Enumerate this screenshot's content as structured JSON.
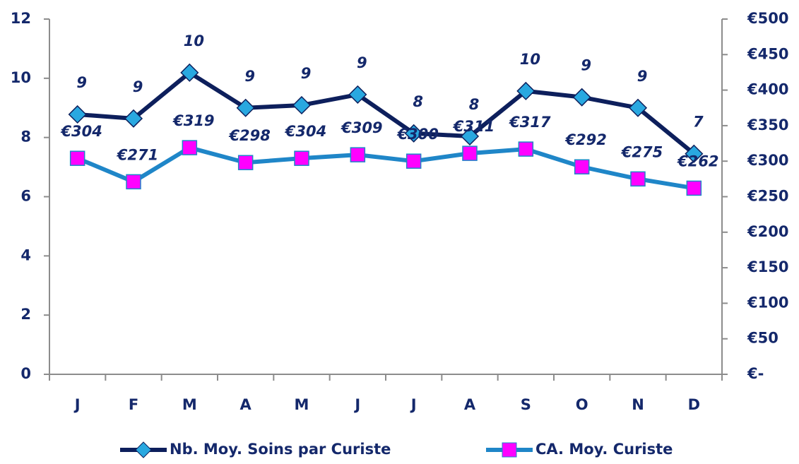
{
  "chart_data": {
    "type": "line",
    "categories": [
      "J",
      "F",
      "M",
      "A",
      "M",
      "J",
      "J",
      "A",
      "S",
      "O",
      "N",
      "D"
    ],
    "series": [
      {
        "name": "Nb. Moy. Soins par Curiste",
        "color": "#0d1f5c",
        "marker": "diamond",
        "marker_color": "#29a8e0",
        "values": [
          8.78,
          8.64,
          10.19,
          9.0,
          9.09,
          9.45,
          8.14,
          8.04,
          9.57,
          9.36,
          9.0,
          7.45
        ],
        "value_labels": [
          "9",
          "9",
          "10",
          "9",
          "9",
          "9",
          "8",
          "8",
          "10",
          "9",
          "9",
          "7"
        ]
      },
      {
        "name": "CA. Moy. Curiste",
        "color": "#1f86c8",
        "marker": "square",
        "marker_color": "#ff00ff",
        "axis": "y2",
        "values": [
          304,
          271,
          319,
          298,
          304,
          309,
          300,
          311,
          317,
          292,
          275,
          262
        ],
        "value_labels": [
          "€304",
          "€271",
          "€319",
          "€298",
          "€304",
          "€309",
          "€300",
          "€311",
          "€317",
          "€292",
          "€275",
          "€262"
        ]
      }
    ],
    "ylim": [
      0,
      12
    ],
    "yticks": [
      0,
      2,
      4,
      6,
      8,
      10,
      12
    ],
    "y2lim": [
      0,
      500
    ],
    "y2ticks": [
      {
        "value": 0,
        "label": "€-"
      },
      {
        "value": 50,
        "label": "€50"
      },
      {
        "value": 100,
        "label": "€100"
      },
      {
        "value": 150,
        "label": "€150"
      },
      {
        "value": 200,
        "label": "€200"
      },
      {
        "value": 250,
        "label": "€250"
      },
      {
        "value": 300,
        "label": "€300"
      },
      {
        "value": 350,
        "label": "€350"
      },
      {
        "value": 400,
        "label": "€400"
      },
      {
        "value": 450,
        "label": "€450"
      },
      {
        "value": 500,
        "label": "€500"
      }
    ],
    "legend": "bottom",
    "grid": false
  }
}
